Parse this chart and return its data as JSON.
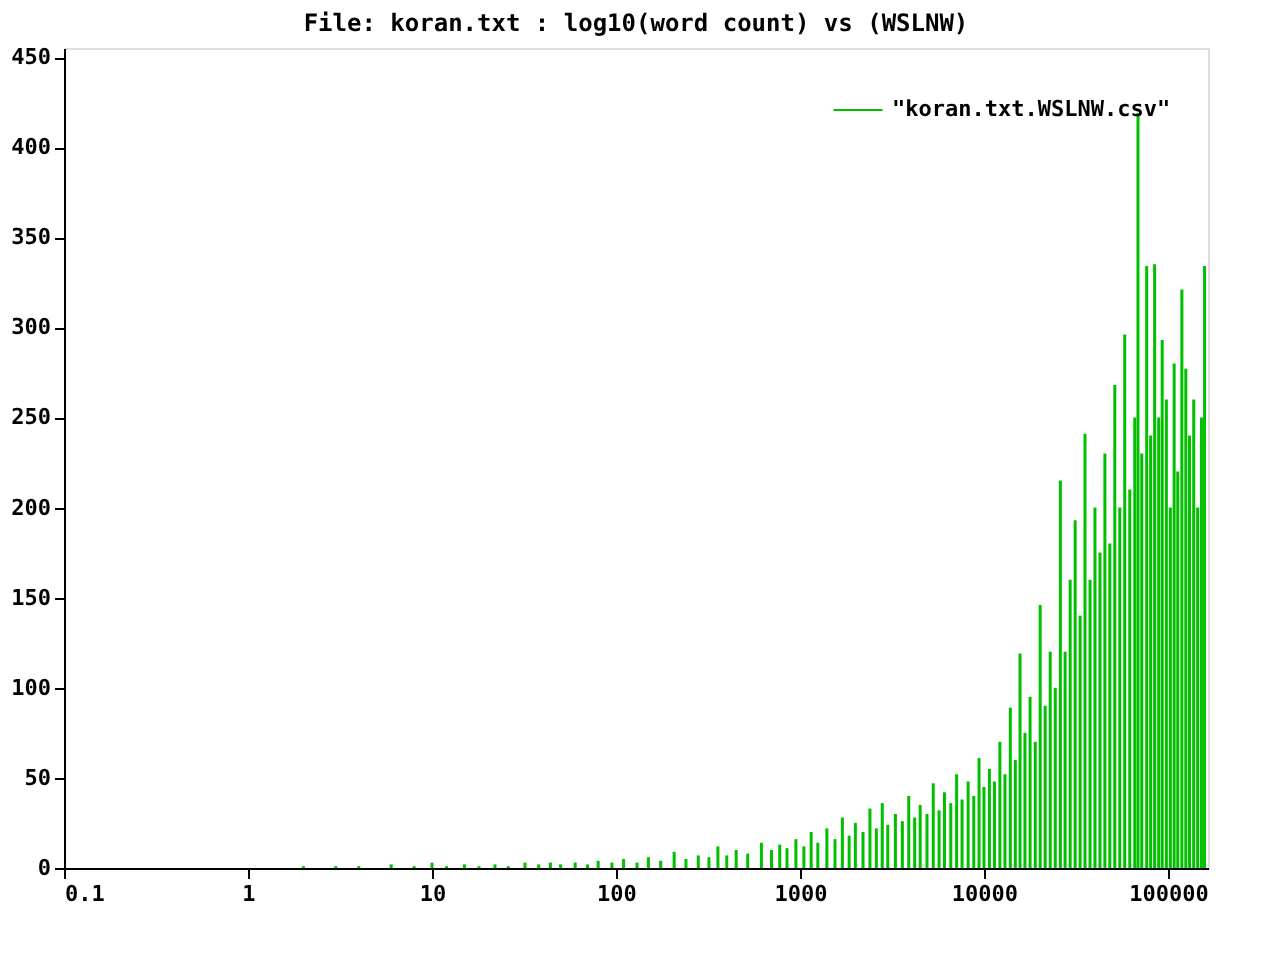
{
  "chart_data": {
    "type": "bar",
    "title": "File: koran.txt : log10(word count) vs (WSLNW)",
    "x": [
      2,
      3,
      4,
      6,
      8,
      10,
      12,
      15,
      18,
      22,
      26,
      32,
      38,
      44,
      50,
      60,
      70,
      80,
      95,
      110,
      130,
      150,
      175,
      207,
      240,
      280,
      320,
      358,
      400,
      450,
      520,
      617,
      700,
      776,
      850,
      950,
      1050,
      1150,
      1250,
      1400,
      1550,
      1700,
      1850,
      2000,
      2200,
      2400,
      2600,
      2800,
      3000,
      3300,
      3600,
      3900,
      4200,
      4500,
      4900,
      5300,
      5700,
      6100,
      6600,
      7100,
      7600,
      8200,
      8800,
      9400,
      10000,
      10700,
      11400,
      12200,
      13000,
      13900,
      14800,
      15700,
      16700,
      17800,
      19000,
      20200,
      21500,
      22900,
      24400,
      26000,
      27600,
      29400,
      31300,
      33300,
      35400,
      37700,
      40100,
      42700,
      45400,
      48300,
      51400,
      54700,
      58200,
      62000,
      66000,
      68700,
      72000,
      76600,
      80500,
      84600,
      89000,
      93000,
      98000,
      103000,
      108000,
      113000,
      119000,
      125000,
      131000,
      138000,
      145000,
      152000,
      158000
    ],
    "series": [
      {
        "name": "\"koran.txt.WSLNW.csv\"",
        "color": "#00c000",
        "values": [
          1,
          1,
          1,
          2,
          1,
          3,
          1,
          2,
          1,
          2,
          1,
          3,
          2,
          3,
          2,
          3,
          2,
          4,
          3,
          5,
          3,
          6,
          4,
          9,
          5,
          7,
          6,
          12,
          7,
          10,
          8,
          14,
          10,
          13,
          11,
          16,
          12,
          20,
          14,
          22,
          16,
          28,
          18,
          25,
          20,
          33,
          22,
          36,
          24,
          30,
          26,
          40,
          28,
          35,
          30,
          47,
          32,
          42,
          36,
          52,
          38,
          48,
          40,
          61,
          45,
          55,
          48,
          70,
          52,
          89,
          60,
          119,
          75,
          95,
          70,
          146,
          90,
          120,
          100,
          215,
          120,
          160,
          193,
          140,
          241,
          160,
          200,
          175,
          230,
          180,
          268,
          200,
          296,
          210,
          250,
          419,
          230,
          334,
          240,
          335,
          250,
          293,
          260,
          200,
          280,
          220,
          321,
          277,
          240,
          260,
          200,
          250,
          334
        ]
      }
    ],
    "xlim": [
      0.1,
      165000
    ],
    "xticks": [
      0.1,
      1,
      10,
      100,
      1000,
      10000,
      100000
    ],
    "ylim": [
      0,
      455
    ],
    "yticks": [
      0,
      50,
      100,
      150,
      200,
      250,
      300,
      350,
      400,
      450
    ],
    "log": "x",
    "grid": false,
    "legend": "top right"
  }
}
